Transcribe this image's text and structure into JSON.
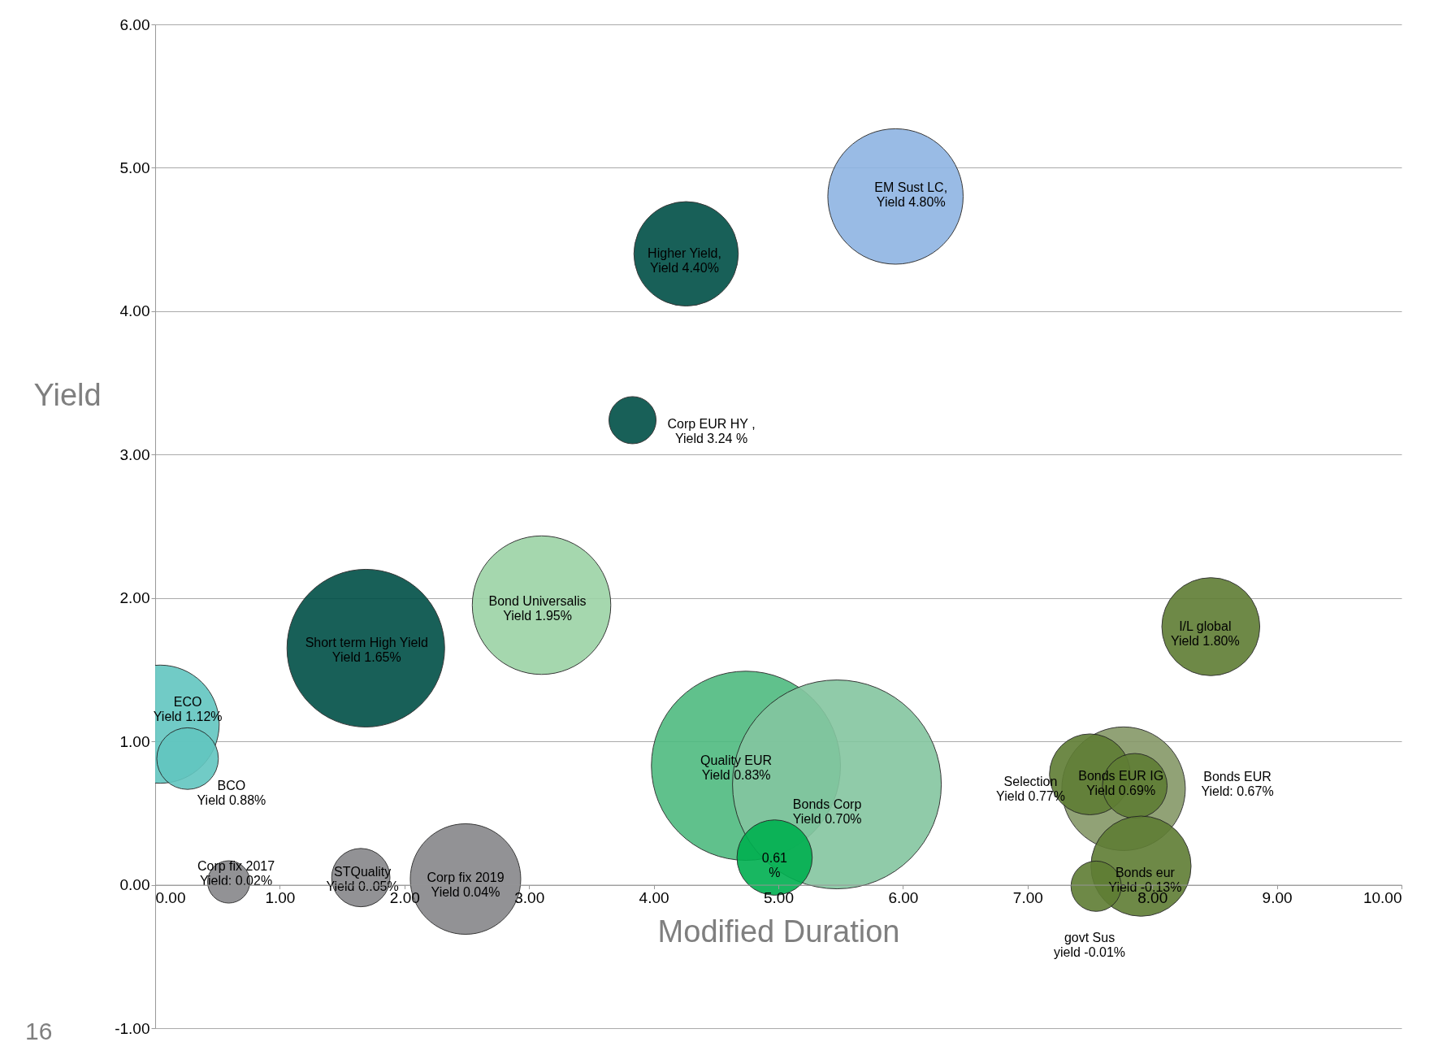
{
  "chart_data": {
    "type": "bubble",
    "xlabel": "Modified Duration",
    "ylabel": "Yield",
    "x": [
      0.04,
      0.26,
      0.59,
      1.65,
      2.49,
      1.69,
      3.1,
      4.26,
      3.83,
      5.94,
      4.74,
      5.47,
      4.97,
      8.47,
      7.77,
      7.5,
      7.86,
      7.91,
      7.55
    ],
    "values": [
      1.12,
      0.88,
      0.02,
      0.05,
      0.04,
      1.65,
      1.95,
      4.4,
      3.24,
      4.8,
      0.83,
      0.7,
      0.19,
      1.8,
      0.67,
      0.77,
      0.69,
      0.13,
      -0.01
    ],
    "sizes": [
      0.32,
      0.087,
      0.041,
      0.078,
      0.28,
      0.57,
      0.44,
      0.25,
      0.051,
      0.42,
      0.82,
      1,
      0.13,
      0.22,
      0.35,
      0.15,
      0.096,
      0.23,
      0.058
    ],
    "colors": [
      "#62c6c0",
      "#62c6c0",
      "#87878a",
      "#87878a",
      "#87878a",
      "#004f47",
      "#9cd3a6",
      "#004f47",
      "#004f47",
      "#8eb4e3",
      "#4fbb80",
      "#84c6a0",
      "#00b050",
      "#5f7d34",
      "#869868",
      "#5f7d34",
      "#5f7d34",
      "#5f7d34",
      "#5f7d34"
    ],
    "xlim": [
      0,
      10
    ],
    "ylim": [
      -1,
      6
    ],
    "xticks": [
      {
        "value": 0,
        "label": "0.00"
      },
      {
        "value": 1,
        "label": "1.00"
      },
      {
        "value": 2,
        "label": "2.00"
      },
      {
        "value": 3,
        "label": "3.00"
      },
      {
        "value": 4,
        "label": "4.00"
      },
      {
        "value": 5,
        "label": "5.00"
      },
      {
        "value": 6,
        "label": "6.00"
      },
      {
        "value": 7,
        "label": "7.00"
      },
      {
        "value": 8,
        "label": "8.00"
      },
      {
        "value": 9,
        "label": "9.00"
      },
      {
        "value": 10,
        "label": "10.00"
      }
    ],
    "yticks": [
      {
        "value": -1,
        "label": "-1.00"
      },
      {
        "value": 0,
        "label": "0.00"
      },
      {
        "value": 1,
        "label": "1.00"
      },
      {
        "value": 2,
        "label": "2.00"
      },
      {
        "value": 3,
        "label": "3.00"
      },
      {
        "value": 4,
        "label": "4.00"
      },
      {
        "value": 5,
        "label": "5.00"
      },
      {
        "value": 6,
        "label": "6.00"
      }
    ],
    "grid": "y",
    "legend": false,
    "annotations": [
      {
        "text": "ECO\nYield 1.12%",
        "x": 0.04,
        "y": 1.12
      },
      {
        "text": "BCO\nYield 0.88%",
        "x": 0.26,
        "y": 0.88
      },
      {
        "text": "Corp fix 2017\nYield: 0.02%",
        "x": 0.59,
        "y": 0.02
      },
      {
        "text": "STQuality\nYield 0..05%",
        "x": 1.65,
        "y": 0.05
      },
      {
        "text": "Corp fix 2019\nYield 0.04%",
        "x": 2.49,
        "y": 0.04
      },
      {
        "text": "Short term High Yield\nYield 1.65%",
        "x": 1.69,
        "y": 1.65
      },
      {
        "text": "Bond Universalis\nYield 1.95%",
        "x": 3.1,
        "y": 1.95
      },
      {
        "text": "Higher Yield,\nYield 4.40%",
        "x": 4.26,
        "y": 4.4
      },
      {
        "text": "Corp EUR HY ,\nYield 3.24 %",
        "x": 3.83,
        "y": 3.24
      },
      {
        "text": "EM Sust LC,\nYield 4.80%",
        "x": 5.94,
        "y": 4.8
      },
      {
        "text": "Quality EUR\nYield 0.83%",
        "x": 4.74,
        "y": 0.83
      },
      {
        "text": "Bonds Corp\nYield 0.70%",
        "x": 5.47,
        "y": 0.7
      },
      {
        "text": "0.61\n%",
        "x": 4.97,
        "y": 0.19
      },
      {
        "text": "I/L global\nYield 1.80%",
        "x": 8.47,
        "y": 1.8
      },
      {
        "text": "Selection\nYield 0.77%",
        "x": 7.5,
        "y": 0.77
      },
      {
        "text": "Bonds EUR IG\nYield 0.69%",
        "x": 7.86,
        "y": 0.69
      },
      {
        "text": "Bonds eur\nYield -0.13%",
        "x": 7.91,
        "y": 0.13
      },
      "Bonds EUR\nYield: 0.67%",
      "govt Sus\nyield -0.01%",
      "16"
    ]
  }
}
